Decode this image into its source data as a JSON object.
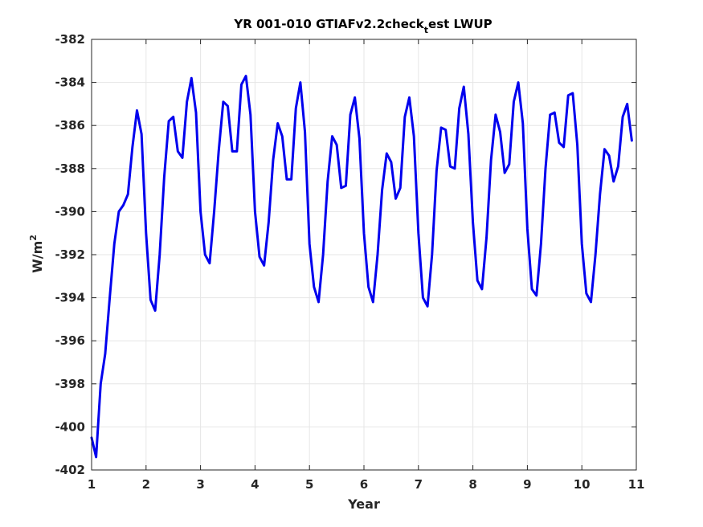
{
  "chart_data": {
    "type": "line",
    "title": {
      "main": "YR 001-010 GTIAFv2.2check",
      "subscript": "t",
      "tail": "est LWUP"
    },
    "xlabel": "Year",
    "ylabel": {
      "base": "W/m",
      "superscript": "2"
    },
    "xlim": [
      1,
      11
    ],
    "ylim": [
      -402,
      -382
    ],
    "xticks": [
      "1",
      "2",
      "3",
      "4",
      "5",
      "6",
      "7",
      "8",
      "9",
      "10",
      "11"
    ],
    "yticks": [
      "-382",
      "-384",
      "-386",
      "-388",
      "-390",
      "-392",
      "-394",
      "-396",
      "-398",
      "-400",
      "-402"
    ],
    "grid": true,
    "line_color": "#0000ee",
    "series": [
      {
        "x": [
          1.0,
          1.083,
          1.167,
          1.25,
          1.333,
          1.417,
          1.5,
          1.583,
          1.667,
          1.75,
          1.833,
          1.917,
          2.0,
          2.083,
          2.167,
          2.25,
          2.333,
          2.417,
          2.5,
          2.583,
          2.667,
          2.75,
          2.833,
          2.917,
          3.0,
          3.083,
          3.167,
          3.25,
          3.333,
          3.417,
          3.5,
          3.583,
          3.667,
          3.75,
          3.833,
          3.917,
          4.0,
          4.083,
          4.167,
          4.25,
          4.333,
          4.417,
          4.5,
          4.583,
          4.667,
          4.75,
          4.833,
          4.917,
          5.0,
          5.083,
          5.167,
          5.25,
          5.333,
          5.417,
          5.5,
          5.583,
          5.667,
          5.75,
          5.833,
          5.917,
          6.0,
          6.083,
          6.167,
          6.25,
          6.333,
          6.417,
          6.5,
          6.583,
          6.667,
          6.75,
          6.833,
          6.917,
          7.0,
          7.083,
          7.167,
          7.25,
          7.333,
          7.417,
          7.5,
          7.583,
          7.667,
          7.75,
          7.833,
          7.917,
          8.0,
          8.083,
          8.167,
          8.25,
          8.333,
          8.417,
          8.5,
          8.583,
          8.667,
          8.75,
          8.833,
          8.917,
          9.0,
          9.083,
          9.167,
          9.25,
          9.333,
          9.417,
          9.5,
          9.583,
          9.667,
          9.75,
          9.833,
          9.917,
          10.0,
          10.083,
          10.167,
          10.25,
          10.333,
          10.417,
          10.5,
          10.583,
          10.667,
          10.75,
          10.833,
          10.917
        ],
        "y": [
          -400.5,
          -401.4,
          -398.0,
          -396.6,
          -394.0,
          -391.5,
          -390.0,
          -389.7,
          -389.2,
          -387.0,
          -385.3,
          -386.4,
          -391.0,
          -394.1,
          -394.6,
          -392.0,
          -388.4,
          -385.8,
          -385.6,
          -387.2,
          -387.5,
          -384.9,
          -383.8,
          -385.4,
          -390.0,
          -392.0,
          -392.4,
          -390.0,
          -387.2,
          -384.9,
          -385.1,
          -387.2,
          -387.2,
          -384.1,
          -383.7,
          -385.5,
          -390.0,
          -392.1,
          -392.5,
          -390.5,
          -387.6,
          -385.9,
          -386.5,
          -388.5,
          -388.5,
          -385.2,
          -384.0,
          -386.3,
          -391.5,
          -393.5,
          -394.2,
          -392.0,
          -388.6,
          -386.5,
          -386.9,
          -388.9,
          -388.8,
          -385.5,
          -384.7,
          -386.6,
          -391.0,
          -393.5,
          -394.2,
          -392.0,
          -389.0,
          -387.3,
          -387.7,
          -389.4,
          -388.9,
          -385.6,
          -384.7,
          -386.5,
          -391.0,
          -394.0,
          -394.4,
          -392.0,
          -388.1,
          -386.1,
          -386.2,
          -387.9,
          -388.0,
          -385.2,
          -384.2,
          -386.4,
          -390.5,
          -393.2,
          -393.6,
          -391.2,
          -387.6,
          -385.5,
          -386.3,
          -388.2,
          -387.8,
          -384.9,
          -384.0,
          -385.9,
          -390.8,
          -393.6,
          -393.9,
          -391.5,
          -388.0,
          -385.5,
          -385.4,
          -386.8,
          -387.0,
          -384.6,
          -384.5,
          -386.9,
          -391.5,
          -393.8,
          -394.2,
          -392.0,
          -389.2,
          -387.1,
          -387.4,
          -388.6,
          -387.9,
          -385.6,
          -385.0,
          -386.7
        ]
      }
    ]
  }
}
